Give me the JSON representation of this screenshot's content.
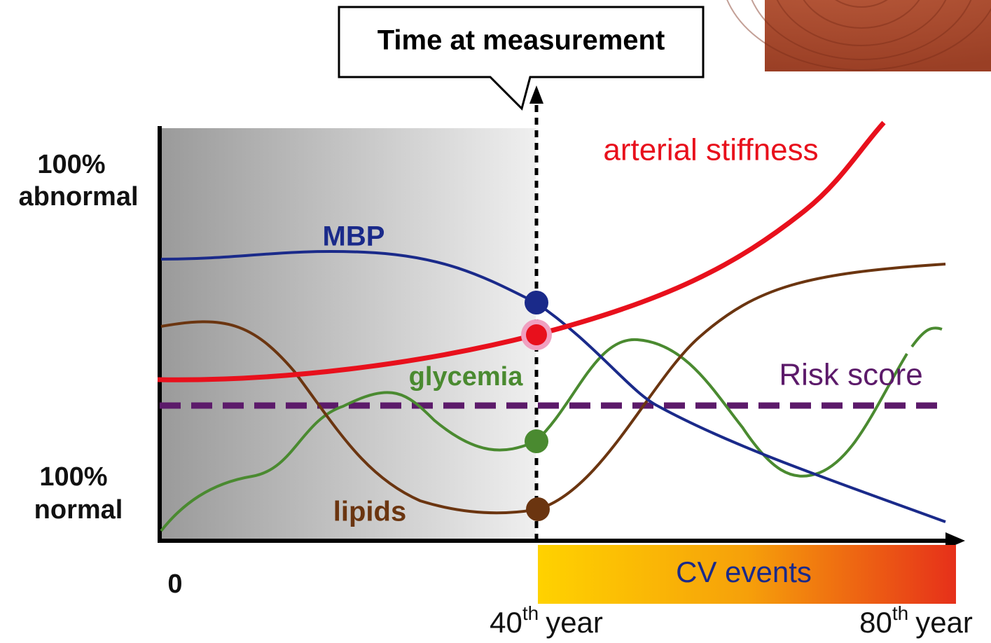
{
  "callout": "Time at measurement",
  "y_labels": {
    "top": [
      "100%",
      "abnormal"
    ],
    "bottom": [
      "100%",
      "normal"
    ]
  },
  "curves": {
    "mbp": "MBP",
    "arterial_stiffness": "arterial stiffness",
    "glycemia": "glycemia",
    "risk_score": "Risk score",
    "lipids": "lipids"
  },
  "origin": "0",
  "band": "CV events",
  "x_labels": [
    {
      "number": "40",
      "suffix": "th",
      "unit": "year"
    },
    {
      "number": "80",
      "suffix": "th",
      "unit": "year"
    }
  ]
}
